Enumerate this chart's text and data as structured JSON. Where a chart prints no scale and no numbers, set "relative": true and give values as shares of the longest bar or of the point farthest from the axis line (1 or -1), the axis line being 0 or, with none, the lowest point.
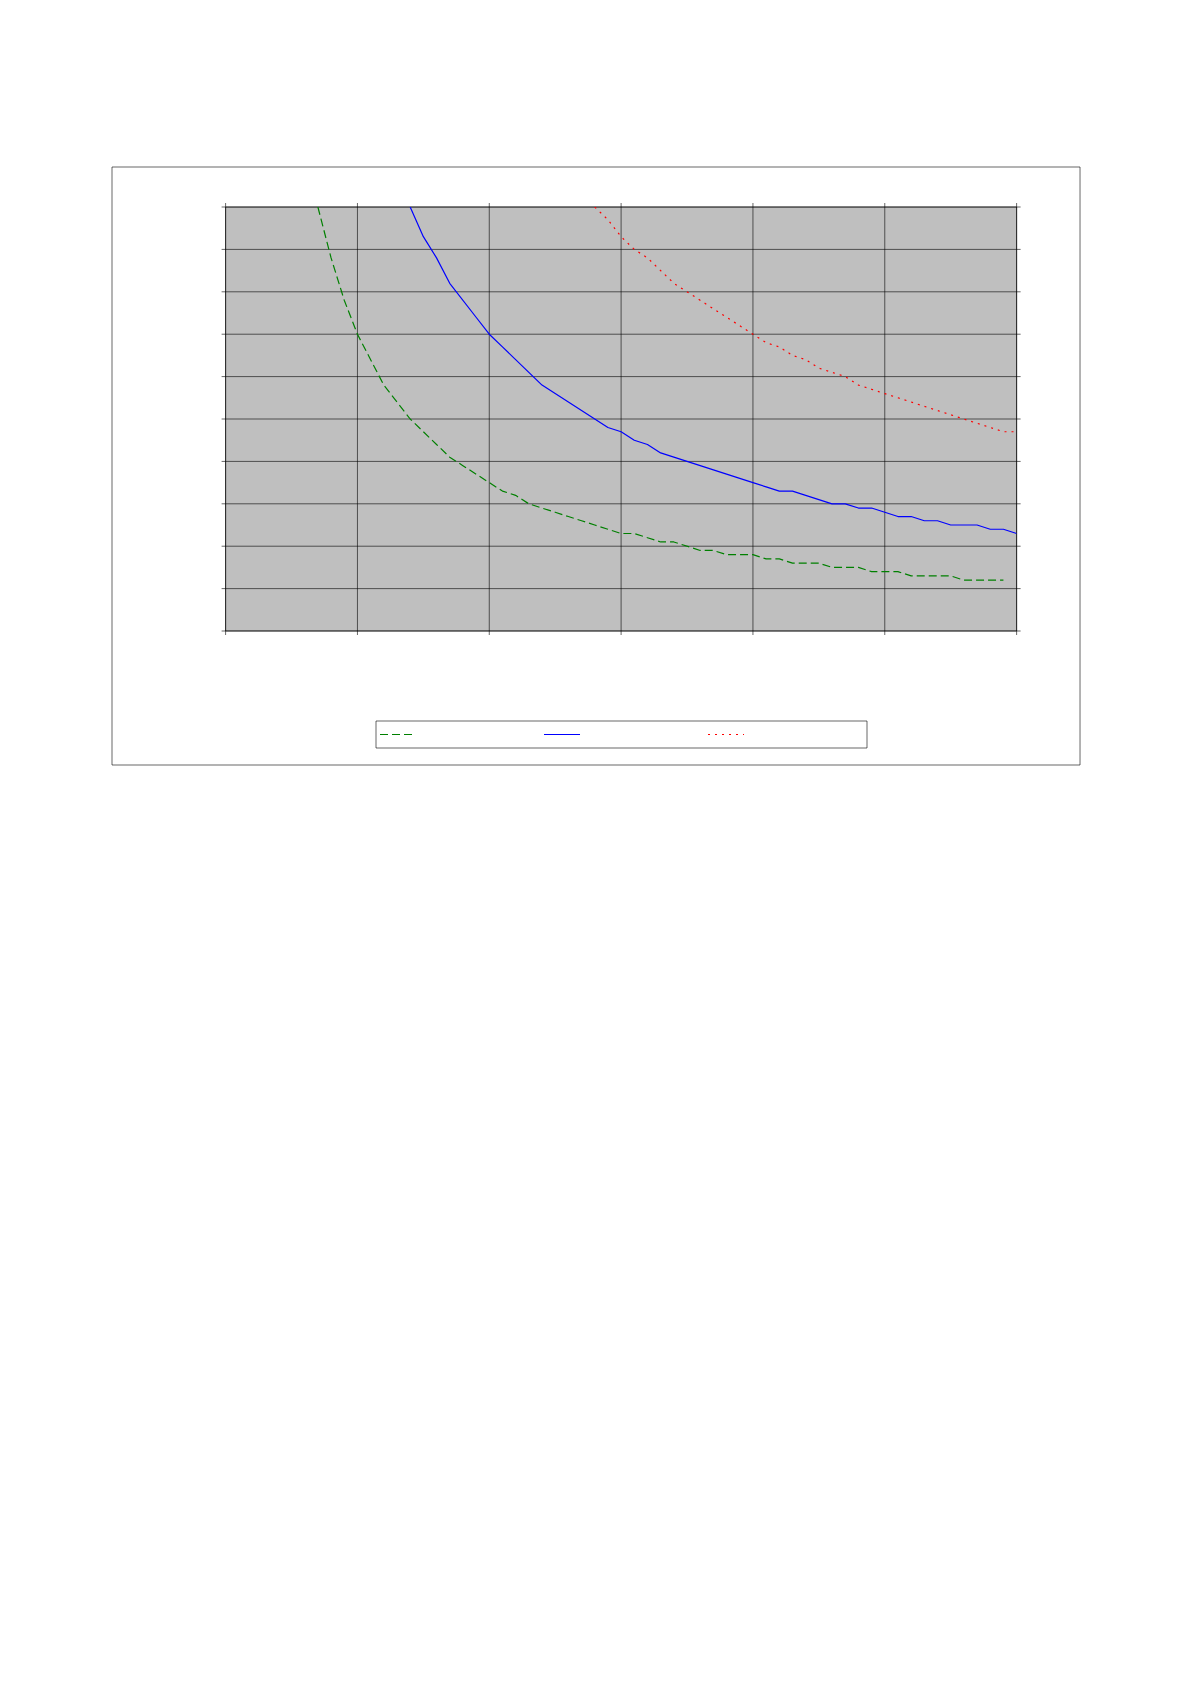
{
  "chart_data": {
    "type": "line",
    "relative": true,
    "grid": true,
    "tick_labels": false,
    "marker": "none",
    "categories": [
      null,
      null,
      null,
      null,
      null,
      null,
      null,
      null,
      null,
      null,
      null,
      null,
      null,
      null,
      null,
      null,
      null,
      null,
      null,
      null,
      null,
      null,
      null,
      null,
      null,
      null,
      null,
      null,
      null,
      null,
      null,
      null,
      null,
      null,
      null,
      null,
      null,
      null,
      null,
      null,
      null,
      null,
      null,
      null,
      null,
      null,
      null,
      null,
      null,
      null,
      null,
      null,
      null,
      null,
      null,
      null,
      null,
      null,
      null,
      null,
      null
    ],
    "series": [
      {
        "color": "#008000",
        "line_style": "dashed",
        "values": [
          null,
          null,
          null,
          null,
          null,
          null,
          null,
          1.0,
          0.88,
          0.78,
          0.7,
          0.64,
          0.58,
          0.54,
          0.5,
          0.47,
          0.44,
          0.41,
          0.39,
          0.37,
          0.35,
          0.33,
          0.32,
          0.3,
          0.29,
          0.28,
          0.27,
          0.26,
          0.25,
          0.24,
          0.23,
          0.23,
          0.22,
          0.21,
          0.21,
          0.2,
          0.19,
          0.19,
          0.18,
          0.18,
          0.18,
          0.17,
          0.17,
          0.16,
          0.16,
          0.16,
          0.15,
          0.15,
          0.15,
          0.14,
          0.14,
          0.14,
          0.13,
          0.13,
          0.13,
          0.13,
          0.12,
          0.12,
          0.12,
          0.12,
          null
        ]
      },
      {
        "color": "#0000ff",
        "line_style": "solid",
        "values": [
          null,
          null,
          null,
          null,
          null,
          null,
          null,
          null,
          null,
          null,
          null,
          null,
          null,
          null,
          1.0,
          0.93,
          0.88,
          0.82,
          0.78,
          0.74,
          0.7,
          0.67,
          0.64,
          0.61,
          0.58,
          0.56,
          0.54,
          0.52,
          0.5,
          0.48,
          0.47,
          0.45,
          0.44,
          0.42,
          0.41,
          0.4,
          0.39,
          0.38,
          0.37,
          0.36,
          0.35,
          0.34,
          0.33,
          0.33,
          0.32,
          0.31,
          0.3,
          0.3,
          0.29,
          0.29,
          0.28,
          0.27,
          0.27,
          0.26,
          0.26,
          0.25,
          0.25,
          0.25,
          0.24,
          0.24,
          0.23
        ]
      },
      {
        "color": "#ff0000",
        "line_style": "dotted",
        "values": [
          null,
          null,
          null,
          null,
          null,
          null,
          null,
          null,
          null,
          null,
          null,
          null,
          null,
          null,
          null,
          null,
          null,
          null,
          null,
          null,
          null,
          null,
          null,
          null,
          null,
          null,
          null,
          null,
          1.0,
          0.97,
          0.93,
          0.9,
          0.88,
          0.85,
          0.82,
          0.8,
          0.78,
          0.76,
          0.74,
          0.72,
          0.7,
          0.68,
          0.67,
          0.65,
          0.64,
          0.62,
          0.61,
          0.6,
          0.58,
          0.57,
          0.56,
          0.55,
          0.54,
          0.53,
          0.52,
          0.51,
          0.5,
          0.49,
          0.48,
          0.47,
          0.47
        ]
      }
    ]
  }
}
